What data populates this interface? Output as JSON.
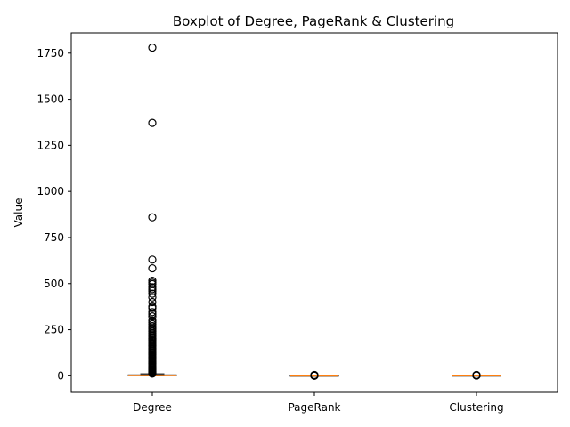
{
  "chart_data": {
    "type": "boxplot",
    "title": "Boxplot of Degree, PageRank & Clustering",
    "xlabel": "",
    "ylabel": "Value",
    "ylim": [
      -90,
      1860
    ],
    "yticks": [
      0,
      250,
      500,
      750,
      1000,
      1250,
      1500,
      1750
    ],
    "categories": [
      "Degree",
      "PageRank",
      "Clustering"
    ],
    "series": [
      {
        "category": "Degree",
        "q1": 1,
        "median": 2,
        "q3": 5,
        "whisker_low": 0,
        "whisker_high": 11,
        "outliers": [
          1780,
          1372,
          860,
          630,
          583,
          515,
          505,
          497,
          480,
          470,
          460,
          445,
          425,
          400,
          375,
          368,
          345,
          335,
          322,
          300,
          290,
          280,
          270,
          262,
          255,
          248,
          240,
          232,
          225,
          218,
          210,
          203,
          196,
          190,
          183,
          176,
          170,
          163,
          157,
          150,
          144,
          138,
          132,
          126,
          120,
          114,
          108,
          102,
          96,
          90,
          84,
          78,
          72,
          66,
          60,
          55,
          50,
          45,
          40,
          35,
          30,
          26,
          22,
          18,
          15,
          12
        ]
      },
      {
        "category": "PageRank",
        "q1": 0,
        "median": 0,
        "q3": 0,
        "whisker_low": 0,
        "whisker_high": 0,
        "outliers": [
          0.5,
          1,
          1.5,
          2,
          2.5,
          3,
          3.5,
          4
        ]
      },
      {
        "category": "Clustering",
        "q1": 0,
        "median": 0.2,
        "q3": 0.5,
        "whisker_low": 0,
        "whisker_high": 1,
        "outliers": [
          1.5,
          2,
          2.5,
          3,
          3.5,
          4
        ]
      }
    ],
    "colors": {
      "box": "#000000",
      "median": "#ff7f0e",
      "outlier_edge": "#000000"
    },
    "grid": false
  }
}
